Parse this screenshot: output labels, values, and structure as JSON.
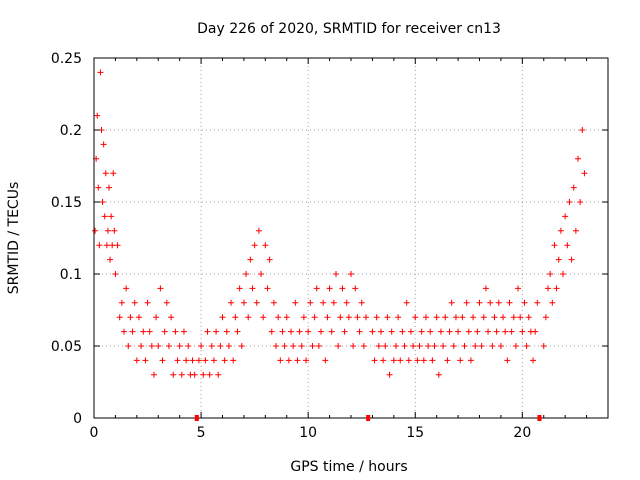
{
  "chart_data": {
    "type": "scatter",
    "title": "Day 226 of 2020, SRMTID for receiver cn13",
    "xlabel": "GPS time / hours",
    "ylabel": "SRMTID / TECUs",
    "xlim": [
      0,
      24
    ],
    "ylim": [
      0,
      0.25
    ],
    "xticks": [
      0,
      5,
      10,
      15,
      20
    ],
    "yticks": [
      0,
      0.05,
      0.1,
      0.15,
      0.2,
      0.25
    ],
    "xtick_labels": [
      "0",
      "5",
      "10",
      "15",
      "20"
    ],
    "ytick_labels": [
      "0",
      "0.05",
      "0.1",
      "0.15",
      "0.2",
      "0.25"
    ],
    "grid": true,
    "marker": "+",
    "color": "#ff0000",
    "gap_marks_x": [
      4.8,
      12.8,
      20.8
    ],
    "series": [
      {
        "name": "SRMTID",
        "x": [
          0.05,
          0.1,
          0.15,
          0.2,
          0.25,
          0.3,
          0.35,
          0.4,
          0.45,
          0.5,
          0.55,
          0.6,
          0.65,
          0.7,
          0.75,
          0.8,
          0.85,
          0.9,
          0.95,
          1.0,
          1.1,
          1.2,
          1.3,
          1.4,
          1.5,
          1.6,
          1.7,
          1.8,
          1.9,
          2.0,
          2.1,
          2.2,
          2.3,
          2.4,
          2.5,
          2.6,
          2.7,
          2.8,
          2.9,
          3.0,
          3.1,
          3.2,
          3.3,
          3.4,
          3.5,
          3.6,
          3.7,
          3.8,
          3.9,
          4.0,
          4.1,
          4.2,
          4.3,
          4.4,
          4.5,
          4.6,
          4.7,
          4.9,
          5.0,
          5.1,
          5.2,
          5.3,
          5.4,
          5.5,
          5.6,
          5.7,
          5.8,
          5.9,
          6.0,
          6.1,
          6.2,
          6.3,
          6.4,
          6.5,
          6.6,
          6.7,
          6.8,
          6.9,
          7.0,
          7.1,
          7.2,
          7.3,
          7.4,
          7.5,
          7.6,
          7.7,
          7.8,
          7.9,
          8.0,
          8.1,
          8.2,
          8.3,
          8.4,
          8.5,
          8.6,
          8.7,
          8.8,
          8.9,
          9.0,
          9.1,
          9.2,
          9.3,
          9.4,
          9.5,
          9.6,
          9.7,
          9.8,
          9.9,
          10.0,
          10.1,
          10.2,
          10.3,
          10.4,
          10.5,
          10.6,
          10.7,
          10.8,
          10.9,
          11.0,
          11.1,
          11.2,
          11.3,
          11.4,
          11.5,
          11.6,
          11.7,
          11.8,
          11.9,
          12.0,
          12.1,
          12.2,
          12.3,
          12.4,
          12.5,
          12.6,
          12.7,
          13.0,
          13.1,
          13.2,
          13.3,
          13.4,
          13.5,
          13.6,
          13.7,
          13.8,
          13.9,
          14.0,
          14.1,
          14.2,
          14.3,
          14.4,
          14.5,
          14.6,
          14.7,
          14.8,
          14.9,
          15.0,
          15.1,
          15.2,
          15.3,
          15.4,
          15.5,
          15.6,
          15.7,
          15.8,
          15.9,
          16.0,
          16.1,
          16.2,
          16.3,
          16.4,
          16.5,
          16.6,
          16.7,
          16.8,
          16.9,
          17.0,
          17.1,
          17.2,
          17.3,
          17.4,
          17.5,
          17.6,
          17.7,
          17.8,
          17.9,
          18.0,
          18.1,
          18.2,
          18.3,
          18.4,
          18.5,
          18.6,
          18.7,
          18.8,
          18.9,
          19.0,
          19.1,
          19.2,
          19.3,
          19.4,
          19.5,
          19.6,
          19.7,
          19.8,
          19.9,
          20.0,
          20.1,
          20.2,
          20.3,
          20.4,
          20.5,
          20.6,
          20.7,
          21.0,
          21.1,
          21.2,
          21.3,
          21.4,
          21.5,
          21.6,
          21.7,
          21.8,
          21.9,
          22.0,
          22.1,
          22.2,
          22.3,
          22.4,
          22.5,
          22.6,
          22.7,
          22.8,
          22.9
        ],
        "y": [
          0.13,
          0.18,
          0.21,
          0.16,
          0.12,
          0.24,
          0.2,
          0.15,
          0.19,
          0.14,
          0.17,
          0.12,
          0.13,
          0.16,
          0.11,
          0.14,
          0.12,
          0.17,
          0.13,
          0.1,
          0.12,
          0.07,
          0.08,
          0.06,
          0.09,
          0.05,
          0.07,
          0.06,
          0.08,
          0.04,
          0.07,
          0.05,
          0.06,
          0.04,
          0.08,
          0.06,
          0.05,
          0.03,
          0.07,
          0.05,
          0.09,
          0.04,
          0.06,
          0.08,
          0.05,
          0.07,
          0.03,
          0.06,
          0.04,
          0.05,
          0.03,
          0.06,
          0.04,
          0.05,
          0.03,
          0.04,
          0.03,
          0.04,
          0.05,
          0.03,
          0.04,
          0.06,
          0.03,
          0.05,
          0.04,
          0.06,
          0.03,
          0.05,
          0.07,
          0.04,
          0.06,
          0.05,
          0.08,
          0.04,
          0.07,
          0.06,
          0.09,
          0.05,
          0.08,
          0.1,
          0.07,
          0.11,
          0.09,
          0.12,
          0.08,
          0.13,
          0.1,
          0.07,
          0.12,
          0.09,
          0.11,
          0.06,
          0.08,
          0.05,
          0.07,
          0.04,
          0.06,
          0.05,
          0.07,
          0.04,
          0.06,
          0.05,
          0.08,
          0.04,
          0.06,
          0.05,
          0.07,
          0.04,
          0.06,
          0.08,
          0.05,
          0.07,
          0.09,
          0.05,
          0.06,
          0.08,
          0.04,
          0.07,
          0.09,
          0.06,
          0.08,
          0.1,
          0.05,
          0.07,
          0.09,
          0.06,
          0.08,
          0.07,
          0.1,
          0.05,
          0.09,
          0.07,
          0.06,
          0.08,
          0.05,
          0.07,
          0.06,
          0.04,
          0.07,
          0.05,
          0.06,
          0.04,
          0.05,
          0.07,
          0.03,
          0.06,
          0.04,
          0.05,
          0.07,
          0.04,
          0.06,
          0.05,
          0.08,
          0.04,
          0.06,
          0.05,
          0.07,
          0.04,
          0.05,
          0.06,
          0.04,
          0.07,
          0.05,
          0.06,
          0.04,
          0.05,
          0.07,
          0.03,
          0.06,
          0.05,
          0.07,
          0.04,
          0.06,
          0.08,
          0.05,
          0.07,
          0.06,
          0.04,
          0.07,
          0.05,
          0.08,
          0.06,
          0.04,
          0.07,
          0.05,
          0.06,
          0.08,
          0.05,
          0.07,
          0.09,
          0.06,
          0.08,
          0.05,
          0.07,
          0.06,
          0.08,
          0.05,
          0.07,
          0.06,
          0.04,
          0.08,
          0.06,
          0.07,
          0.05,
          0.09,
          0.07,
          0.06,
          0.08,
          0.05,
          0.07,
          0.06,
          0.04,
          0.06,
          0.08,
          0.05,
          0.07,
          0.09,
          0.1,
          0.08,
          0.12,
          0.09,
          0.11,
          0.13,
          0.1,
          0.14,
          0.12,
          0.15,
          0.11,
          0.16,
          0.13,
          0.18,
          0.15,
          0.2,
          0.17
        ]
      }
    ]
  }
}
